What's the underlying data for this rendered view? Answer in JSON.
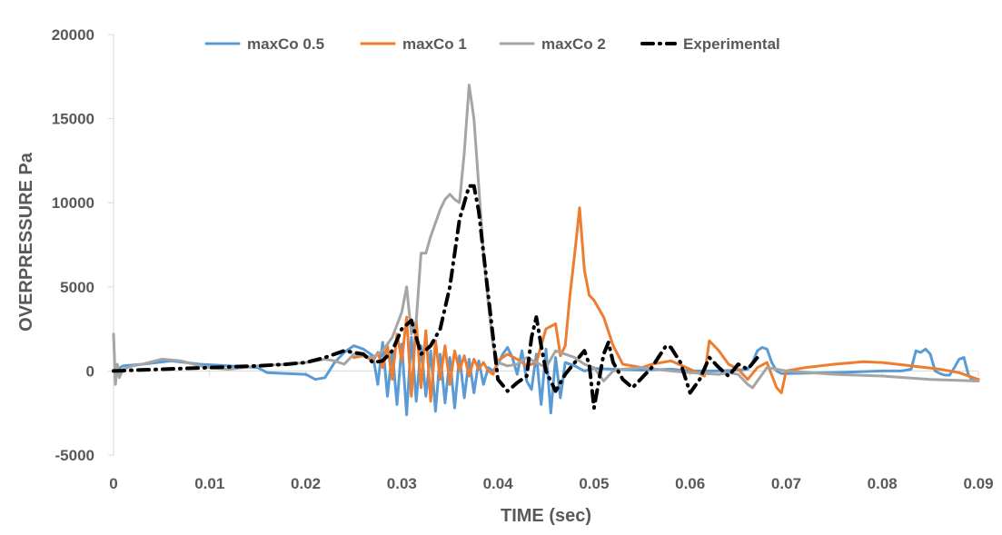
{
  "chart_data": {
    "type": "line",
    "title": "",
    "xlabel": "TIME (sec)",
    "ylabel": "OVERPRESSURE Pa",
    "xlim": [
      0,
      0.09
    ],
    "ylim": [
      -5000,
      20000
    ],
    "x_ticks": [
      "0",
      "0.01",
      "0.02",
      "0.03",
      "0.04",
      "0.05",
      "0.06",
      "0.07",
      "0.08",
      "0.09"
    ],
    "y_ticks": [
      "-5000",
      "0",
      "5000",
      "10000",
      "15000",
      "20000"
    ],
    "grid": false,
    "legend_position": "top",
    "series": [
      {
        "name": "maxCo 0.5",
        "color": "#5B9BD5",
        "dash": "solid",
        "x": [
          0,
          0.001,
          0.003,
          0.006,
          0.009,
          0.012,
          0.015,
          0.016,
          0.018,
          0.02,
          0.021,
          0.022,
          0.023,
          0.024,
          0.025,
          0.026,
          0.027,
          0.0275,
          0.028,
          0.0285,
          0.029,
          0.0295,
          0.03,
          0.0305,
          0.031,
          0.0315,
          0.032,
          0.0325,
          0.033,
          0.0335,
          0.034,
          0.0345,
          0.035,
          0.0355,
          0.036,
          0.0365,
          0.037,
          0.0375,
          0.038,
          0.0385,
          0.039,
          0.0395,
          0.04,
          0.0405,
          0.041,
          0.0415,
          0.042,
          0.0425,
          0.043,
          0.0435,
          0.044,
          0.0445,
          0.045,
          0.0455,
          0.046,
          0.0465,
          0.047,
          0.048,
          0.049,
          0.05,
          0.052,
          0.055,
          0.058,
          0.06,
          0.063,
          0.065,
          0.066,
          0.0665,
          0.067,
          0.0675,
          0.068,
          0.0685,
          0.069,
          0.0695,
          0.07,
          0.075,
          0.08,
          0.082,
          0.083,
          0.0835,
          0.084,
          0.0845,
          0.085,
          0.0855,
          0.086,
          0.0865,
          0.087,
          0.0875,
          0.088,
          0.0885,
          0.089,
          0.0895,
          0.09
        ],
        "y": [
          0,
          300,
          400,
          600,
          400,
          300,
          200,
          -100,
          -150,
          -200,
          -500,
          -400,
          500,
          1100,
          1500,
          1300,
          900,
          -800,
          1700,
          -1500,
          1200,
          -2000,
          1600,
          -2600,
          2000,
          -1800,
          1500,
          -1500,
          1200,
          -2400,
          1000,
          -1900,
          800,
          -2200,
          900,
          -1600,
          700,
          -1300,
          600,
          -800,
          200,
          0,
          400,
          1000,
          1400,
          800,
          -200,
          1200,
          -600,
          -1100,
          1000,
          -2000,
          1300,
          -2500,
          800,
          -1600,
          500,
          300,
          0,
          150,
          100,
          50,
          100,
          0,
          0,
          50,
          100,
          500,
          1200,
          1400,
          1300,
          500,
          0,
          -150,
          -150,
          -100,
          0,
          0,
          100,
          1200,
          1100,
          1300,
          1000,
          0,
          -150,
          -250,
          -250,
          200,
          700,
          800,
          -300,
          -600,
          -500
        ]
      },
      {
        "name": "maxCo 1",
        "color": "#ED7D31",
        "dash": "solid",
        "x": [
          0.025,
          0.026,
          0.027,
          0.0275,
          0.028,
          0.0285,
          0.029,
          0.0295,
          0.03,
          0.0305,
          0.031,
          0.0315,
          0.032,
          0.0325,
          0.033,
          0.0335,
          0.034,
          0.0345,
          0.035,
          0.0355,
          0.036,
          0.0365,
          0.037,
          0.0375,
          0.038,
          0.0385,
          0.039,
          0.0395,
          0.04,
          0.041,
          0.042,
          0.043,
          0.044,
          0.045,
          0.046,
          0.0465,
          0.047,
          0.0475,
          0.048,
          0.0485,
          0.049,
          0.0495,
          0.05,
          0.051,
          0.052,
          0.053,
          0.054,
          0.055,
          0.056,
          0.058,
          0.06,
          0.0615,
          0.062,
          0.063,
          0.064,
          0.065,
          0.066,
          0.067,
          0.068,
          0.069,
          0.0695,
          0.07,
          0.072,
          0.075,
          0.078,
          0.08,
          0.083,
          0.086,
          0.088,
          0.09
        ],
        "y": [
          800,
          900,
          600,
          1100,
          200,
          1500,
          -500,
          2200,
          600,
          3200,
          -1500,
          3000,
          -1000,
          2400,
          -1800,
          1800,
          -500,
          1500,
          -800,
          1200,
          0,
          900,
          -300,
          700,
          100,
          500,
          0,
          -200,
          600,
          1000,
          700,
          300,
          500,
          2500,
          2800,
          900,
          1500,
          4500,
          7000,
          9700,
          6000,
          4500,
          4200,
          3200,
          1500,
          400,
          300,
          200,
          400,
          600,
          100,
          -300,
          1800,
          1200,
          400,
          100,
          -500,
          200,
          500,
          -1000,
          -1300,
          0,
          200,
          400,
          550,
          500,
          300,
          100,
          -100,
          -500
        ]
      },
      {
        "name": "maxCo 2",
        "color": "#A5A5A5",
        "dash": "solid",
        "x": [
          0,
          0.0002,
          0.0004,
          0.0006,
          0.001,
          0.002,
          0.003,
          0.005,
          0.007,
          0.009,
          0.01,
          0.012,
          0.015,
          0.018,
          0.02,
          0.022,
          0.023,
          0.024,
          0.025,
          0.026,
          0.027,
          0.028,
          0.029,
          0.03,
          0.0305,
          0.031,
          0.0315,
          0.032,
          0.0325,
          0.033,
          0.034,
          0.0345,
          0.035,
          0.0355,
          0.036,
          0.0365,
          0.037,
          0.0375,
          0.038,
          0.0385,
          0.039,
          0.0395,
          0.04,
          0.041,
          0.042,
          0.043,
          0.044,
          0.045,
          0.046,
          0.047,
          0.048,
          0.049,
          0.05,
          0.051,
          0.052,
          0.053,
          0.055,
          0.058,
          0.06,
          0.063,
          0.064,
          0.065,
          0.066,
          0.0665,
          0.067,
          0.068,
          0.069,
          0.07,
          0.075,
          0.08,
          0.085,
          0.09
        ],
        "y": [
          2200,
          -800,
          400,
          -400,
          100,
          300,
          400,
          700,
          600,
          300,
          200,
          100,
          300,
          400,
          500,
          700,
          600,
          400,
          1000,
          900,
          800,
          1200,
          2000,
          3500,
          5000,
          2200,
          3000,
          7000,
          7000,
          8000,
          9600,
          10200,
          10500,
          10200,
          10000,
          13000,
          17000,
          15000,
          11000,
          7000,
          4000,
          1500,
          500,
          300,
          400,
          800,
          500,
          200,
          1200,
          1000,
          800,
          400,
          200,
          -600,
          0,
          100,
          200,
          0,
          -100,
          -200,
          -100,
          -200,
          -800,
          -1000,
          -600,
          200,
          100,
          0,
          -200,
          -300,
          -500,
          -600
        ]
      },
      {
        "name": "Experimental",
        "color": "#000000",
        "dash": "dash-dot",
        "x": [
          0,
          0.005,
          0.01,
          0.015,
          0.018,
          0.02,
          0.022,
          0.024,
          0.026,
          0.027,
          0.028,
          0.029,
          0.03,
          0.031,
          0.0315,
          0.032,
          0.033,
          0.034,
          0.035,
          0.0355,
          0.036,
          0.0365,
          0.037,
          0.0375,
          0.038,
          0.039,
          0.0395,
          0.04,
          0.041,
          0.042,
          0.043,
          0.0435,
          0.044,
          0.0445,
          0.045,
          0.046,
          0.047,
          0.048,
          0.049,
          0.0495,
          0.05,
          0.051,
          0.0515,
          0.052,
          0.053,
          0.054,
          0.056,
          0.0575,
          0.058,
          0.059,
          0.06,
          0.061,
          0.062,
          0.063,
          0.064,
          0.065,
          0.066,
          0.067
        ],
        "y": [
          0,
          100,
          200,
          300,
          400,
          500,
          800,
          1200,
          1000,
          500,
          600,
          1200,
          2500,
          3000,
          2000,
          1000,
          1500,
          2500,
          5000,
          7000,
          9000,
          10000,
          11000,
          11000,
          9500,
          4500,
          2000,
          -500,
          -1200,
          -700,
          -300,
          2000,
          3200,
          1500,
          0,
          -1200,
          -200,
          500,
          1200,
          400,
          -2200,
          1000,
          1700,
          500,
          -500,
          -1000,
          200,
          1500,
          1400,
          500,
          -1300,
          -500,
          800,
          200,
          -300,
          400,
          100,
          800
        ]
      }
    ]
  }
}
